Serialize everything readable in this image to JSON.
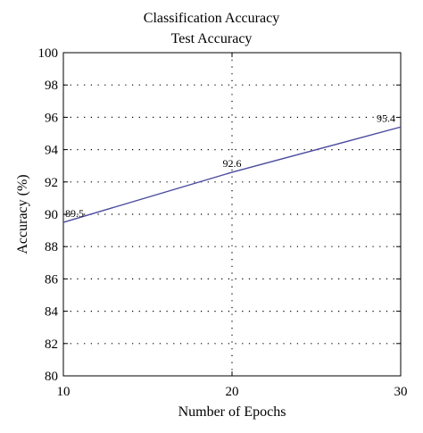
{
  "chart_data": {
    "type": "line",
    "title": "Classification Accuracy",
    "subtitle": "Test Accuracy",
    "xlabel": "Number of Epochs",
    "ylabel": "Accuracy (%)",
    "xlim": [
      10,
      30
    ],
    "ylim": [
      80,
      100
    ],
    "x_ticks": [
      10,
      20,
      30
    ],
    "y_ticks": [
      80,
      82,
      84,
      86,
      88,
      90,
      92,
      94,
      96,
      98,
      100
    ],
    "grid": true,
    "series": [
      {
        "x": [
          10,
          20,
          30
        ],
        "y": [
          89.5,
          92.6,
          95.4
        ],
        "labels": [
          "89.5",
          "92.6",
          "95.4"
        ],
        "color": "#4a4a9e"
      }
    ]
  }
}
